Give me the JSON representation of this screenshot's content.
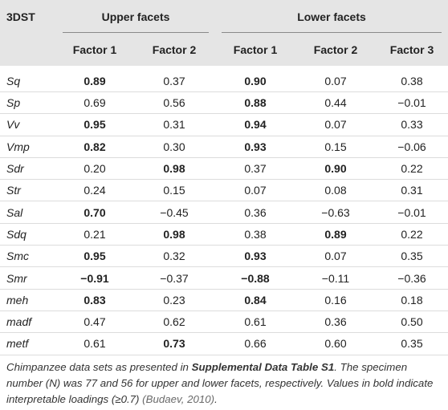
{
  "table": {
    "corner": "3DST",
    "groups": {
      "upper": "Upper facets",
      "lower": "Lower facets"
    },
    "columns": [
      "Factor 1",
      "Factor 2",
      "Factor 1",
      "Factor 2",
      "Factor 3"
    ],
    "rows": [
      {
        "var": "Sq",
        "vals": [
          "0.89",
          "0.37",
          "0.90",
          "0.07",
          "0.38"
        ],
        "bold": [
          true,
          false,
          true,
          false,
          false
        ]
      },
      {
        "var": "Sp",
        "vals": [
          "0.69",
          "0.56",
          "0.88",
          "0.44",
          "−0.01"
        ],
        "bold": [
          false,
          false,
          true,
          false,
          false
        ]
      },
      {
        "var": "Vv",
        "vals": [
          "0.95",
          "0.31",
          "0.94",
          "0.07",
          "0.33"
        ],
        "bold": [
          true,
          false,
          true,
          false,
          false
        ]
      },
      {
        "var": "Vmp",
        "vals": [
          "0.82",
          "0.30",
          "0.93",
          "0.15",
          "−0.06"
        ],
        "bold": [
          true,
          false,
          true,
          false,
          false
        ]
      },
      {
        "var": "Sdr",
        "vals": [
          "0.20",
          "0.98",
          "0.37",
          "0.90",
          "0.22"
        ],
        "bold": [
          false,
          true,
          false,
          true,
          false
        ]
      },
      {
        "var": "Str",
        "vals": [
          "0.24",
          "0.15",
          "0.07",
          "0.08",
          "0.31"
        ],
        "bold": [
          false,
          false,
          false,
          false,
          false
        ]
      },
      {
        "var": "Sal",
        "vals": [
          "0.70",
          "−0.45",
          "0.36",
          "−0.63",
          "−0.01"
        ],
        "bold": [
          true,
          false,
          false,
          false,
          false
        ]
      },
      {
        "var": "Sdq",
        "vals": [
          "0.21",
          "0.98",
          "0.38",
          "0.89",
          "0.22"
        ],
        "bold": [
          false,
          true,
          false,
          true,
          false
        ]
      },
      {
        "var": "Smc",
        "vals": [
          "0.95",
          "0.32",
          "0.93",
          "0.07",
          "0.35"
        ],
        "bold": [
          true,
          false,
          true,
          false,
          false
        ]
      },
      {
        "var": "Smr",
        "vals": [
          "−0.91",
          "−0.37",
          "−0.88",
          "−0.11",
          "−0.36"
        ],
        "bold": [
          true,
          false,
          true,
          false,
          false
        ]
      },
      {
        "var": "meh",
        "vals": [
          "0.83",
          "0.23",
          "0.84",
          "0.16",
          "0.18"
        ],
        "bold": [
          true,
          false,
          true,
          false,
          false
        ]
      },
      {
        "var": "madf",
        "vals": [
          "0.47",
          "0.62",
          "0.61",
          "0.36",
          "0.50"
        ],
        "bold": [
          false,
          false,
          false,
          false,
          false
        ]
      },
      {
        "var": "metf",
        "vals": [
          "0.61",
          "0.73",
          "0.66",
          "0.60",
          "0.35"
        ],
        "bold": [
          false,
          true,
          false,
          false,
          false
        ]
      }
    ]
  },
  "footnote": {
    "part1": "Chimpanzee data sets as presented in ",
    "bold": "Supplemental Data Table S1",
    "part2": ". The specimen number (N) was 77 and 56 for upper and lower facets, respectively. Values in bold indicate interpretable loadings (≥0.7) ",
    "cite": "(Budaev, 2010)",
    "part3": "."
  }
}
